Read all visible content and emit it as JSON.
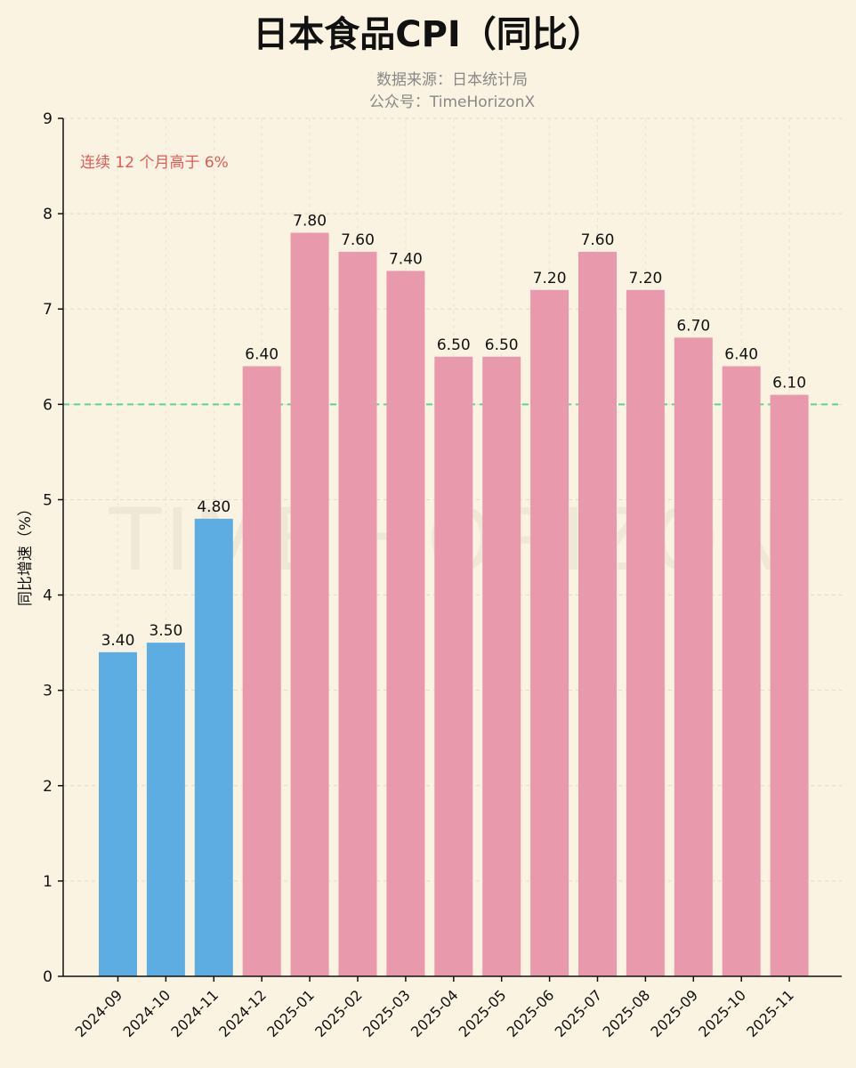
{
  "title": "日本食品CPI（同比）",
  "subtitle_lines": [
    "数据来源：日本统计局",
    "公众号：TimeHorizonX"
  ],
  "annotation": "连续 12 个月高于 6%",
  "watermark": "TIME HORIZON",
  "colors": {
    "below_threshold": "#5dade2",
    "above_threshold": "#e899ab",
    "threshold_line": "#58d68d",
    "annotation": "#e05a5a"
  },
  "chart_data": {
    "type": "bar",
    "title": "日本食品CPI（同比）",
    "xlabel": "",
    "ylabel": "同比增速（%）",
    "ylim": [
      0,
      9
    ],
    "yticks": [
      0,
      1,
      2,
      3,
      4,
      5,
      6,
      7,
      8,
      9
    ],
    "grid": true,
    "threshold": 6,
    "categories": [
      "2024-09",
      "2024-10",
      "2024-11",
      "2024-12",
      "2025-01",
      "2025-02",
      "2025-03",
      "2025-04",
      "2025-05",
      "2025-06",
      "2025-07",
      "2025-08",
      "2025-09",
      "2025-10",
      "2025-11"
    ],
    "values": [
      3.4,
      3.5,
      4.8,
      6.4,
      7.8,
      7.6,
      7.4,
      6.5,
      6.5,
      7.2,
      7.6,
      7.2,
      6.7,
      6.4,
      6.1
    ],
    "value_labels": [
      "3.40",
      "3.50",
      "4.80",
      "6.40",
      "7.80",
      "7.60",
      "7.40",
      "6.50",
      "6.50",
      "7.20",
      "7.60",
      "7.20",
      "6.70",
      "6.40",
      "6.10"
    ]
  }
}
